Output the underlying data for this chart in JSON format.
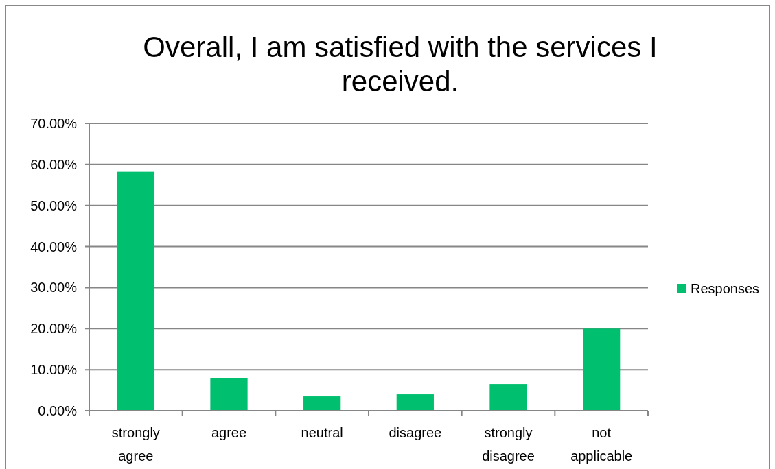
{
  "chart_data": {
    "type": "bar",
    "title": "Overall, I am satisfied with the services I received.",
    "categories": [
      "strongly agree",
      "agree",
      "neutral",
      "disagree",
      "strongly disagree",
      "not applicable"
    ],
    "series": [
      {
        "name": "Responses",
        "color": "#00bf6f",
        "values": [
          58.2,
          8,
          3.5,
          4,
          6.5,
          20
        ]
      }
    ],
    "ylim": [
      0,
      70
    ],
    "yticks": [
      {
        "value": 0,
        "label": "0.00%"
      },
      {
        "value": 10,
        "label": "10.00%"
      },
      {
        "value": 20,
        "label": "20.00%"
      },
      {
        "value": 30,
        "label": "30.00%"
      },
      {
        "value": 40,
        "label": "40.00%"
      },
      {
        "value": 50,
        "label": "50.00%"
      },
      {
        "value": 60,
        "label": "60.00%"
      },
      {
        "value": 70,
        "label": "70.00%"
      }
    ],
    "grid": "y",
    "legend": "right"
  }
}
